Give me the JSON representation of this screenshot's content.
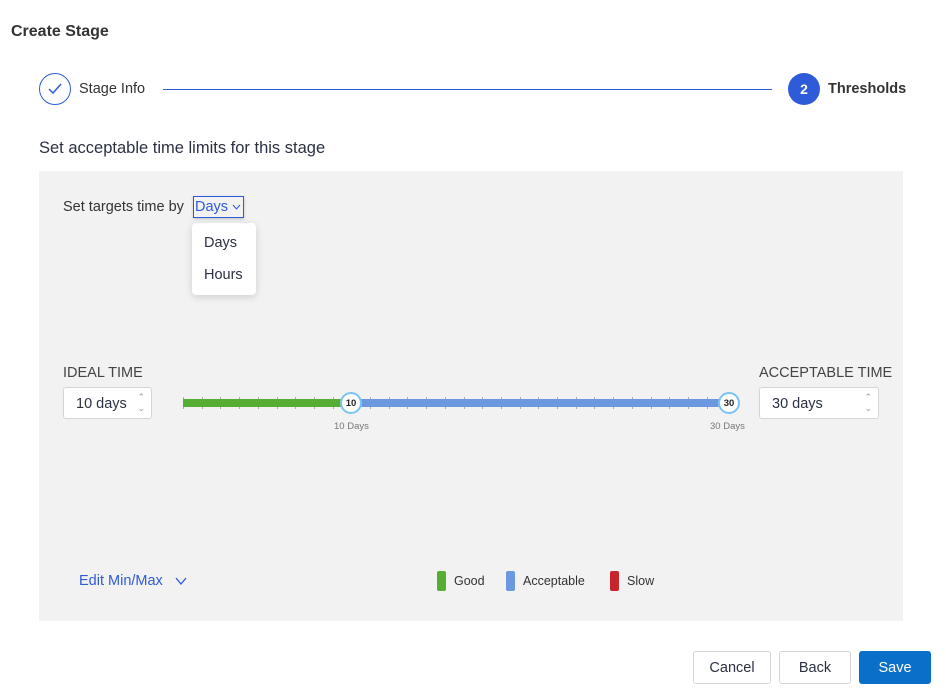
{
  "header": {
    "title": "Create Stage"
  },
  "steps": [
    {
      "label": "Stage Info",
      "state": "complete",
      "icon": "check-icon"
    },
    {
      "number": "2",
      "label": "Thresholds",
      "state": "active"
    }
  ],
  "subtitle": "Set acceptable time limits for this stage",
  "targets": {
    "label": "Set targets time by",
    "selected": "Days",
    "options": [
      "Days",
      "Hours"
    ]
  },
  "ideal": {
    "label": "IDEAL TIME",
    "value": "10 days",
    "handle": "10",
    "handle_label": "10 Days"
  },
  "acceptable": {
    "label": "ACCEPTABLE TIME",
    "value": "30 days",
    "handle": "30",
    "handle_label": "30 Days"
  },
  "edit_minmax": "Edit Min/Max",
  "legend": [
    {
      "label": "Good",
      "color": "#56ad34"
    },
    {
      "label": "Acceptable",
      "color": "#6c98e0"
    },
    {
      "label": "Slow",
      "color": "#c8242b"
    }
  ],
  "buttons": {
    "cancel": "Cancel",
    "back": "Back",
    "save": "Save"
  },
  "colors": {
    "accent": "#2e5bd8",
    "save": "#0a6fc8"
  }
}
